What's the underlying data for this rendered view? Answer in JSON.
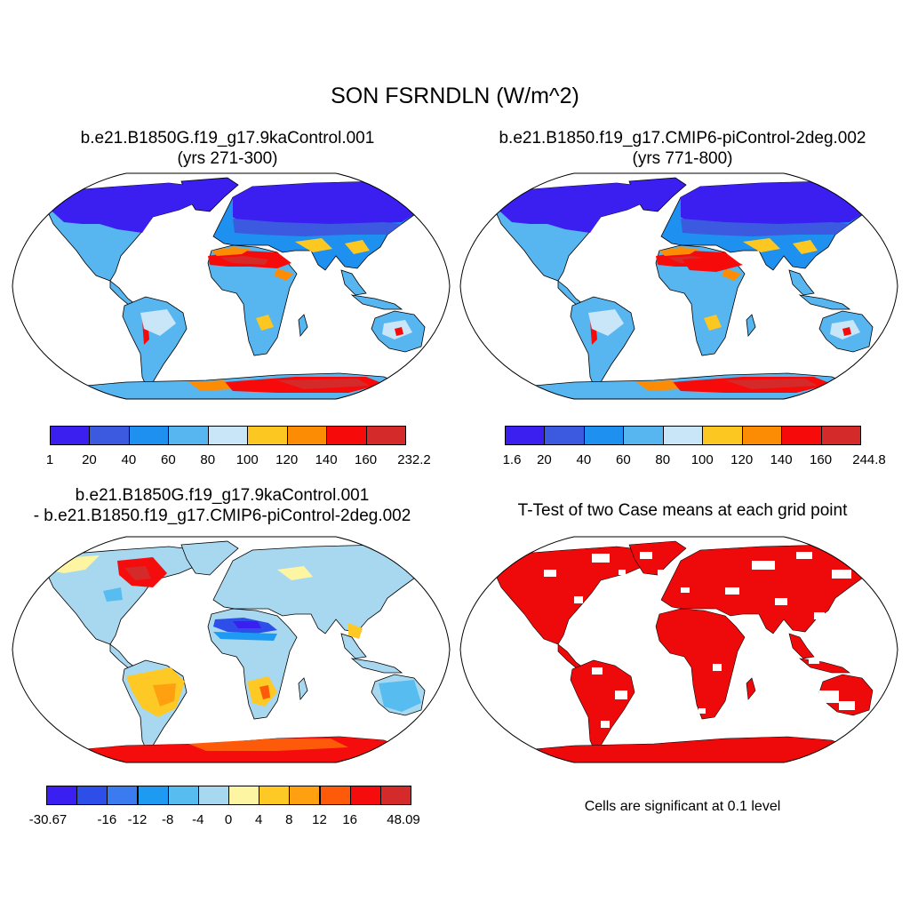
{
  "figure": {
    "title": "SON FSRNDLN (W/m^2)"
  },
  "panels": [
    {
      "title_line1": "b.e21.B1850G.f19_g17.9kaControl.001",
      "title_line2": "(yrs 271-300)",
      "colorbar": {
        "colors": [
          "#3a1ff0",
          "#3c5ae0",
          "#1e90f0",
          "#57b5ef",
          "#c8e6f8",
          "#fcc721",
          "#fd8c05",
          "#f70a0a",
          "#d52a2a"
        ],
        "labels": [
          "1",
          "20",
          "40",
          "60",
          "80",
          "100",
          "120",
          "140",
          "160",
          "232.2"
        ]
      }
    },
    {
      "title_line1": "b.e21.B1850.f19_g17.CMIP6-piControl-2deg.002",
      "title_line2": "(yrs 771-800)",
      "colorbar": {
        "colors": [
          "#3a1ff0",
          "#3c5ae0",
          "#1e90f0",
          "#57b5ef",
          "#c8e6f8",
          "#fcc721",
          "#fd8c05",
          "#f70a0a",
          "#d52a2a"
        ],
        "labels": [
          "1.6",
          "20",
          "40",
          "60",
          "80",
          "100",
          "120",
          "140",
          "160",
          "244.8"
        ]
      }
    },
    {
      "title_line1": "b.e21.B1850G.f19_g17.9kaControl.001",
      "title_line2": "- b.e21.B1850.f19_g17.CMIP6-piControl-2deg.002",
      "colorbar": {
        "colors": [
          "#3a1ff0",
          "#2d4ee8",
          "#3a7cef",
          "#1e9af2",
          "#57bdf0",
          "#a8d8f0",
          "#fef5a2",
          "#fec925",
          "#fea010",
          "#fd5a0a",
          "#f50c0c",
          "#d52a2a"
        ],
        "labels": [
          "-30.67",
          "",
          "-16",
          "-12",
          "-8",
          "-4",
          "0",
          "4",
          "8",
          "12",
          "16",
          "",
          "48.09"
        ]
      }
    },
    {
      "title": "T-Test of two Case means at each grid point",
      "note": "Cells are significant at 0.1 level",
      "significant_color": "#ee0a0a"
    }
  ]
}
